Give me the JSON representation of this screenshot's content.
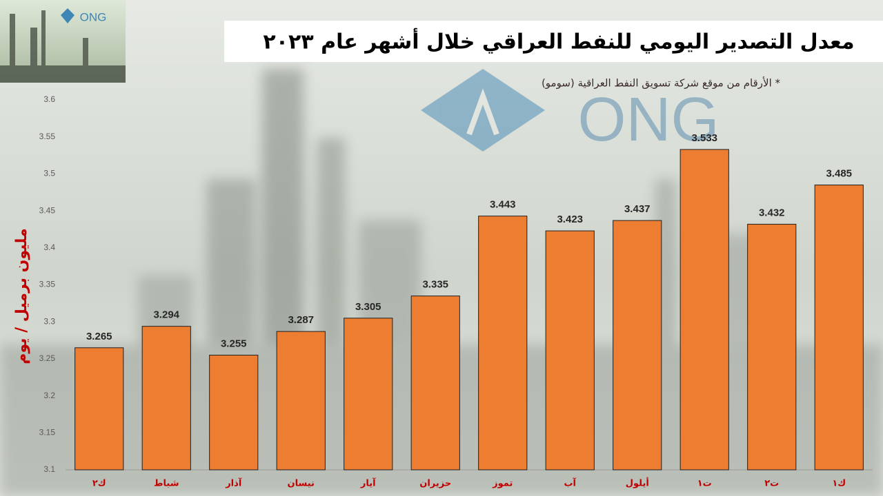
{
  "chart_data": {
    "type": "bar",
    "title": "معدل التصدير اليومي للنفط العراقي خلال أشهر عام ٢٠٢٣",
    "subtitle": "* الأرقام من موقع شركة تسويق النفط العراقية (سومو)",
    "logo": "ONG",
    "y_label": "مليون برميل / يوم",
    "categories": [
      "ك٢",
      "شباط",
      "آذار",
      "نيسان",
      "آيار",
      "حزيران",
      "تموز",
      "آب",
      "أيلول",
      "ت١",
      "ت٢",
      "ك١"
    ],
    "values": [
      3.265,
      3.294,
      3.255,
      3.287,
      3.305,
      3.335,
      3.443,
      3.423,
      3.437,
      3.533,
      3.432,
      3.485
    ],
    "color": "#ed7d31",
    "ylim": [
      3.1,
      3.6
    ],
    "yticks": [
      3.1,
      3.15,
      3.2,
      3.25,
      3.3,
      3.35,
      3.4,
      3.45,
      3.5,
      3.55,
      3.6
    ],
    "grid": false,
    "value_labels_shown": true
  }
}
